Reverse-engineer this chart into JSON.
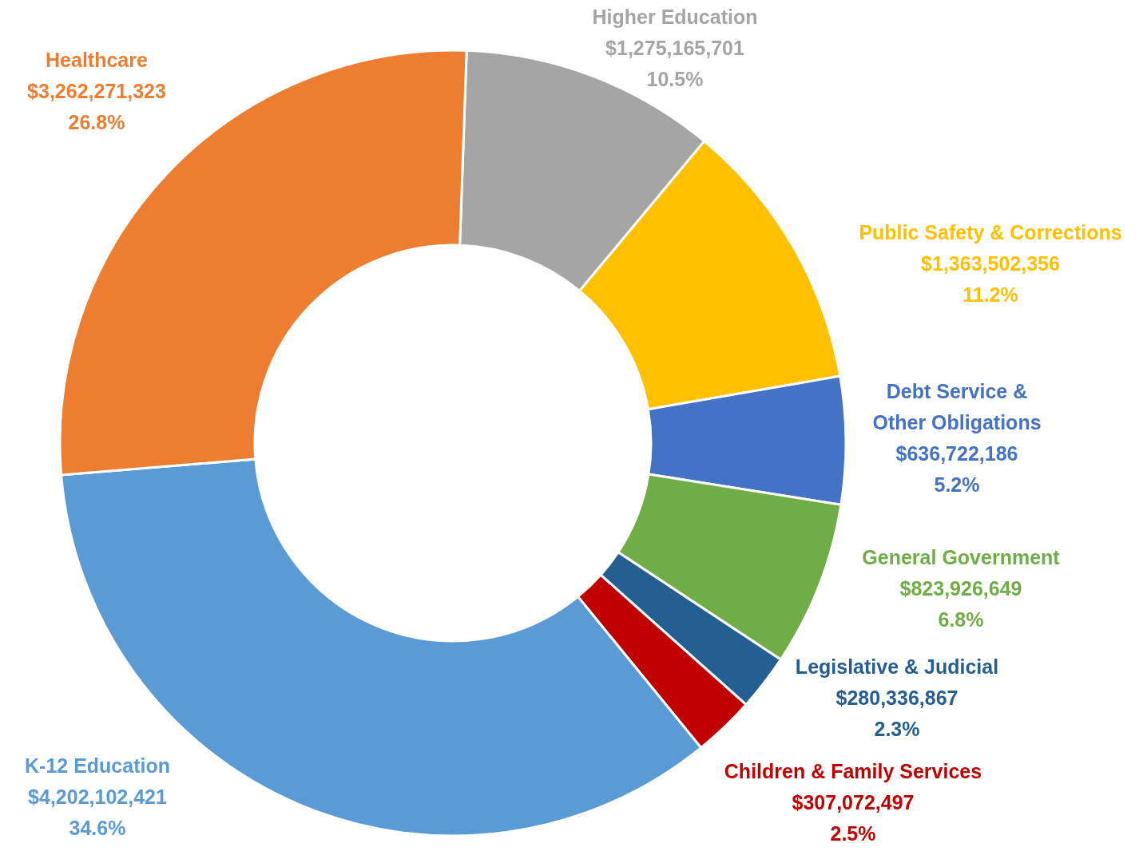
{
  "chart_data": {
    "type": "donut",
    "categories": [
      "Higher Education",
      "Public Safety & Corrections",
      "Debt Service & Other Obligations",
      "General Government",
      "Legislative & Judicial",
      "Children & Family Services",
      "K-12 Education",
      "Healthcare"
    ],
    "values": [
      1275165701,
      1363502356,
      636722186,
      823926649,
      280336867,
      307072497,
      4202102421,
      3262271323
    ],
    "colors": [
      "#a5a5a5",
      "#ffc000",
      "#4472c4",
      "#70ad47",
      "#255e91",
      "#c00000",
      "#5b9bd5",
      "#ed7d31"
    ],
    "value_labels": [
      "$1,275,165,701\n10.5%",
      "$1,363,502,356\n11.2%",
      "$636,722,186\n5.2%",
      "$823,926,649\n6.8%",
      "$280,336,867\n2.3%",
      "$307,072,497\n2.5%",
      "$4,202,102,421\n34.6%",
      "$3,262,271,323\n26.8%"
    ]
  }
}
